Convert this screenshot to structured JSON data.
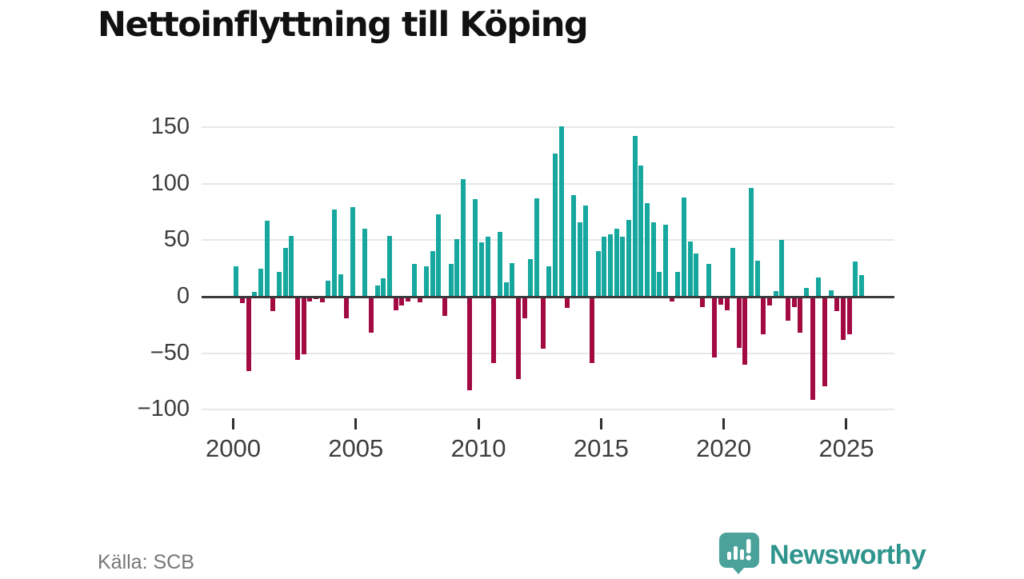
{
  "title": "Nettoinflyttning till Köping",
  "source": "Källa: SCB",
  "brand": {
    "name": "Newsworthy",
    "logo_icon": "newsworthy-speech-bubble-barchart-icon"
  },
  "colors": {
    "positive_bar": "#16a79e",
    "negative_bar": "#a30a42",
    "zero_axis": "#3b3b3b",
    "gridline": "#e7e7e7",
    "axis_label": "#3d3d3d",
    "source_text": "#767676",
    "brand_teal": "#2e948c",
    "brand_logo_fill": "#4aa29b",
    "title_text": "#111111"
  },
  "y_axis_labels": [
    "150",
    "100",
    "50",
    "0",
    "−50",
    "−100"
  ],
  "x_axis_labels": [
    "2000",
    "2005",
    "2010",
    "2015",
    "2020",
    "2025"
  ],
  "chart_data": {
    "type": "bar",
    "title": "Nettoinflyttning till Köping",
    "xlabel": "",
    "ylabel": "",
    "x_unit": "quarter",
    "start": "2000 Q1",
    "end": "2025 Q3",
    "ylim": [
      -100,
      155
    ],
    "yticks": [
      150,
      100,
      50,
      0,
      -50,
      -100
    ],
    "xticks": [
      "2000",
      "2005",
      "2010",
      "2015",
      "2020",
      "2025"
    ],
    "grid": true,
    "legend": false,
    "categories": [
      "2000Q1",
      "2000Q2",
      "2000Q3",
      "2000Q4",
      "2001Q1",
      "2001Q2",
      "2001Q3",
      "2001Q4",
      "2002Q1",
      "2002Q2",
      "2002Q3",
      "2002Q4",
      "2003Q1",
      "2003Q2",
      "2003Q3",
      "2003Q4",
      "2004Q1",
      "2004Q2",
      "2004Q3",
      "2004Q4",
      "2005Q1",
      "2005Q2",
      "2005Q3",
      "2005Q4",
      "2006Q1",
      "2006Q2",
      "2006Q3",
      "2006Q4",
      "2007Q1",
      "2007Q2",
      "2007Q3",
      "2007Q4",
      "2008Q1",
      "2008Q2",
      "2008Q3",
      "2008Q4",
      "2009Q1",
      "2009Q2",
      "2009Q3",
      "2009Q4",
      "2010Q1",
      "2010Q2",
      "2010Q3",
      "2010Q4",
      "2011Q1",
      "2011Q2",
      "2011Q3",
      "2011Q4",
      "2012Q1",
      "2012Q2",
      "2012Q3",
      "2012Q4",
      "2013Q1",
      "2013Q2",
      "2013Q3",
      "2013Q4",
      "2014Q1",
      "2014Q2",
      "2014Q3",
      "2014Q4",
      "2015Q1",
      "2015Q2",
      "2015Q3",
      "2015Q4",
      "2016Q1",
      "2016Q2",
      "2016Q3",
      "2016Q4",
      "2017Q1",
      "2017Q2",
      "2017Q3",
      "2017Q4",
      "2018Q1",
      "2018Q2",
      "2018Q3",
      "2018Q4",
      "2019Q1",
      "2019Q2",
      "2019Q3",
      "2019Q4",
      "2020Q1",
      "2020Q2",
      "2020Q3",
      "2020Q4",
      "2021Q1",
      "2021Q2",
      "2021Q3",
      "2021Q4",
      "2022Q1",
      "2022Q2",
      "2022Q3",
      "2022Q4",
      "2023Q1",
      "2023Q2",
      "2023Q3",
      "2023Q4",
      "2024Q1",
      "2024Q2",
      "2024Q3",
      "2024Q4",
      "2025Q1",
      "2025Q2",
      "2025Q3"
    ],
    "values": [
      27,
      -6,
      -66,
      4,
      25,
      67,
      -13,
      22,
      43,
      54,
      -56,
      -51,
      -4,
      -2,
      -5,
      14,
      77,
      20,
      -19,
      79,
      0,
      60,
      -32,
      10,
      16,
      54,
      -12,
      -8,
      -4,
      29,
      -5,
      27,
      40,
      73,
      -17,
      29,
      51,
      104,
      -83,
      86,
      48,
      53,
      -59,
      57,
      13,
      30,
      -73,
      -19,
      33,
      87,
      -46,
      27,
      127,
      151,
      -10,
      90,
      66,
      81,
      -59,
      40,
      53,
      55,
      60,
      53,
      68,
      142,
      116,
      83,
      66,
      22,
      64,
      -4,
      22,
      88,
      49,
      38,
      -9,
      29,
      -54,
      -7,
      -12,
      43,
      -45,
      -60,
      96,
      32,
      -33,
      -8,
      5,
      50,
      -21,
      -9,
      -32,
      8,
      -91,
      17,
      -79,
      6,
      -13,
      -38,
      -33,
      31,
      19
    ]
  }
}
